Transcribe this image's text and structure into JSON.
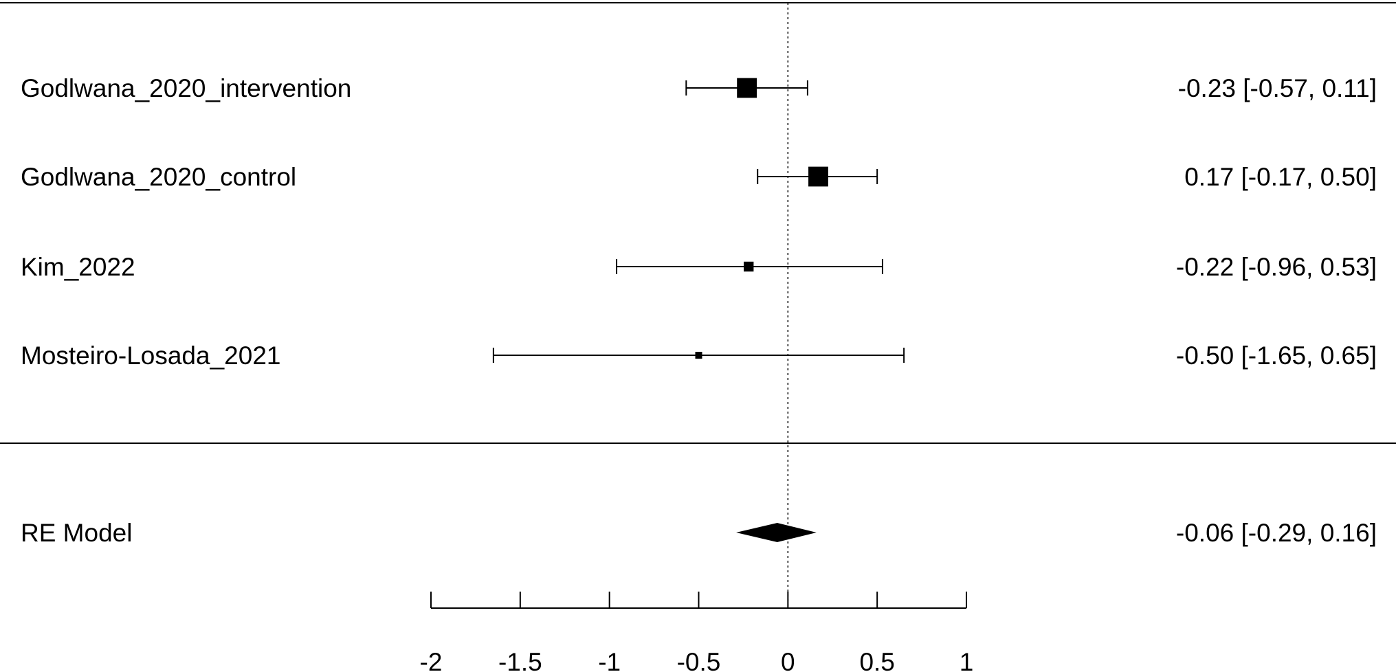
{
  "chart_data": {
    "type": "forest",
    "title": "",
    "xlabel": "",
    "xlim": [
      -2,
      1
    ],
    "x_ticks": [
      {
        "value": -2,
        "label": "-2"
      },
      {
        "value": -1.5,
        "label": "-1.5"
      },
      {
        "value": -1,
        "label": "-1"
      },
      {
        "value": -0.5,
        "label": "-0.5"
      },
      {
        "value": 0,
        "label": "0"
      },
      {
        "value": 0.5,
        "label": "0.5"
      },
      {
        "value": 1,
        "label": "1"
      }
    ],
    "reference_line": 0,
    "studies": [
      {
        "name": "Godlwana_2020_intervention",
        "estimate": -0.23,
        "lower": -0.57,
        "upper": 0.11,
        "weight": 0.36,
        "text": "-0.23 [-0.57, 0.11]"
      },
      {
        "name": "Godlwana_2020_control",
        "estimate": 0.17,
        "lower": -0.17,
        "upper": 0.5,
        "weight": 0.36,
        "text": "0.17 [-0.17, 0.50]"
      },
      {
        "name": "Kim_2022",
        "estimate": -0.22,
        "lower": -0.96,
        "upper": 0.53,
        "weight": 0.09,
        "text": "-0.22 [-0.96, 0.53]"
      },
      {
        "name": "Mosteiro-Losada_2021",
        "estimate": -0.5,
        "lower": -1.65,
        "upper": 0.65,
        "weight": 0.04,
        "text": "-0.50 [-1.65, 0.65]"
      }
    ],
    "summary": {
      "name": "RE Model",
      "estimate": -0.06,
      "lower": -0.29,
      "upper": 0.16,
      "text": "-0.06 [-0.29, 0.16]"
    },
    "grid": false,
    "legend": "none"
  }
}
